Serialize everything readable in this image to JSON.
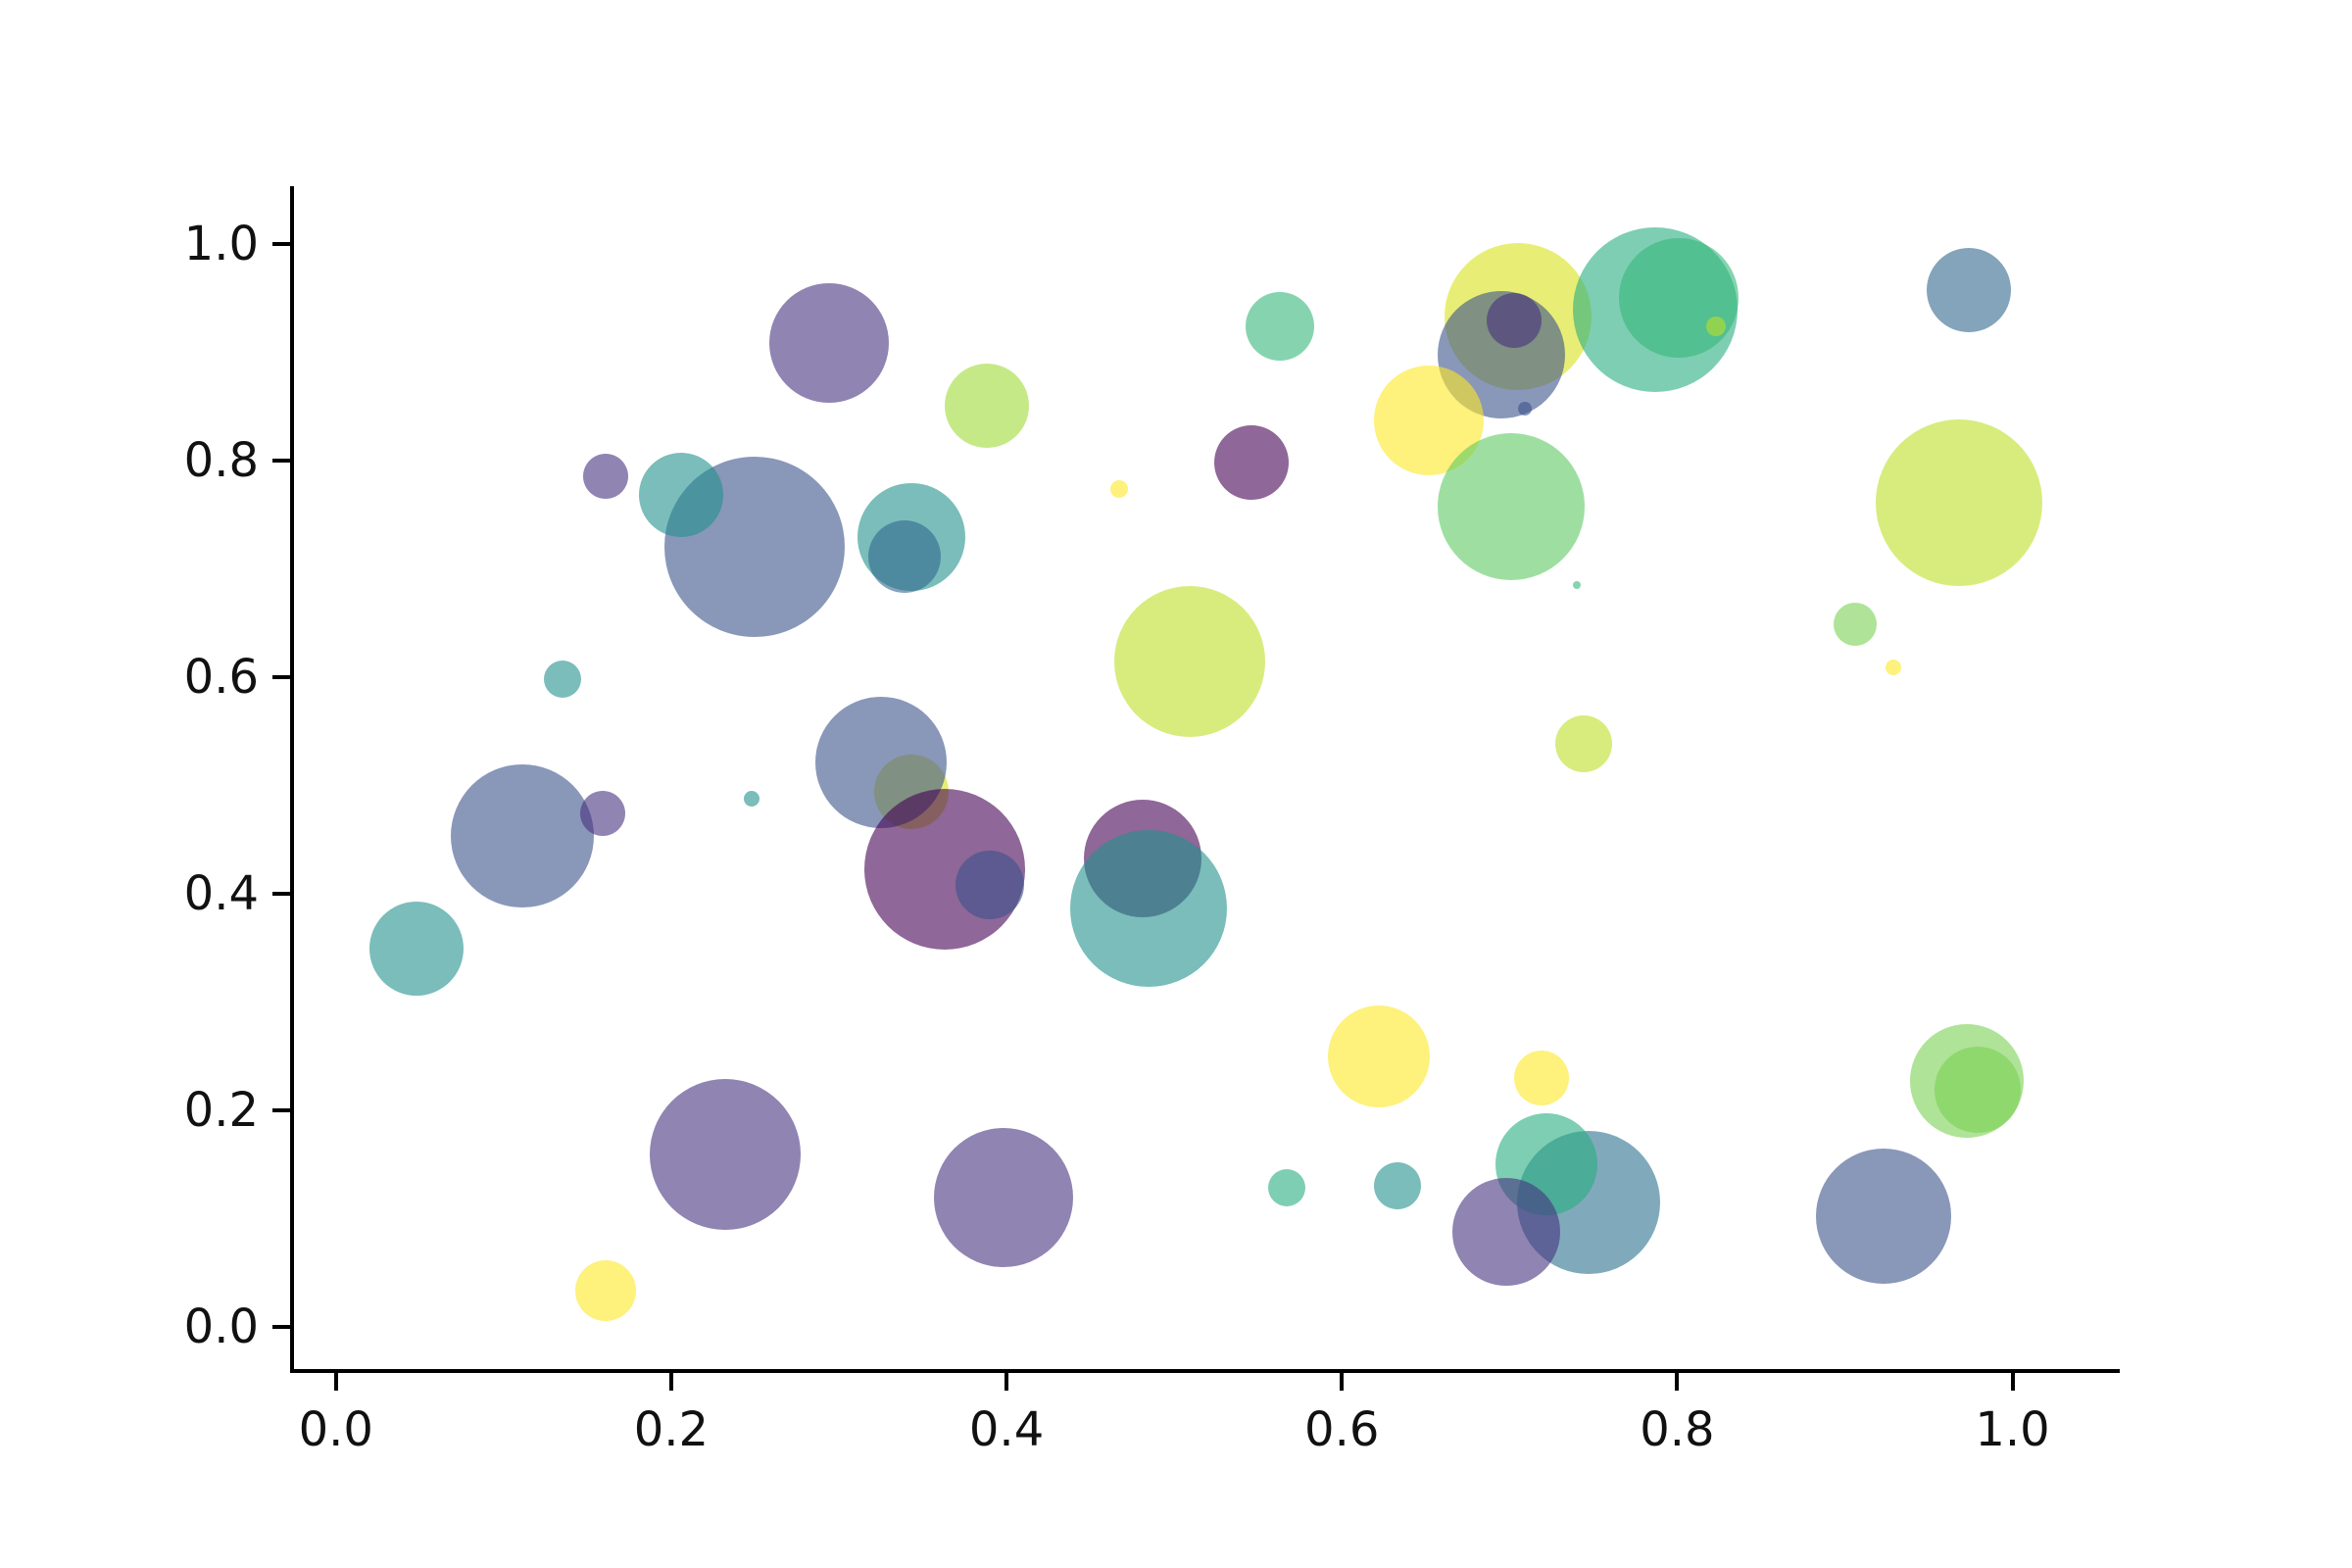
{
  "chart_data": {
    "type": "scatter",
    "title": "",
    "xlabel": "",
    "ylabel": "",
    "grid": false,
    "legend": null,
    "colormap": "viridis",
    "marker_alpha": 0.6,
    "xlim": [
      -0.025,
      1.064
    ],
    "ylim": [
      -0.039,
      1.053
    ],
    "x_tick_values": [
      0.0,
      0.2,
      0.4,
      0.6,
      0.8,
      1.0
    ],
    "x_tick_labels": [
      "0.0",
      "0.2",
      "0.4",
      "0.6",
      "0.8",
      "1.0"
    ],
    "y_tick_values": [
      0.0,
      0.2,
      0.4,
      0.6,
      0.8,
      1.0
    ],
    "y_tick_labels": [
      "0.0",
      "0.2",
      "0.4",
      "0.6",
      "0.8",
      "1.0"
    ],
    "points": [
      {
        "x": 0.705,
        "y": 0.933,
        "r": 75,
        "color": "#d8e219"
      },
      {
        "x": 0.695,
        "y": 0.897,
        "r": 65,
        "color": "#3b528b"
      },
      {
        "x": 0.703,
        "y": 0.929,
        "r": 28,
        "color": "#46327e"
      },
      {
        "x": 0.709,
        "y": 0.848,
        "r": 7,
        "color": "#3b528b"
      },
      {
        "x": 0.787,
        "y": 0.939,
        "r": 84,
        "color": "#28ae80"
      },
      {
        "x": 0.801,
        "y": 0.95,
        "r": 61,
        "color": "#35b779"
      },
      {
        "x": 0.823,
        "y": 0.924,
        "r": 10,
        "color": "#bddf26"
      },
      {
        "x": 0.25,
        "y": 0.72,
        "r": 92,
        "color": "#3b528b"
      },
      {
        "x": 0.343,
        "y": 0.729,
        "r": 55,
        "color": "#21918c"
      },
      {
        "x": 0.339,
        "y": 0.711,
        "r": 37,
        "color": "#31688e"
      },
      {
        "x": 0.294,
        "y": 0.908,
        "r": 61,
        "color": "#46327e"
      },
      {
        "x": 0.161,
        "y": 0.785,
        "r": 23,
        "color": "#46327e"
      },
      {
        "x": 0.206,
        "y": 0.768,
        "r": 43,
        "color": "#21918c"
      },
      {
        "x": 0.388,
        "y": 0.85,
        "r": 43,
        "color": "#a0da39"
      },
      {
        "x": 0.563,
        "y": 0.924,
        "r": 35,
        "color": "#35b779"
      },
      {
        "x": 0.546,
        "y": 0.798,
        "r": 38,
        "color": "#440154"
      },
      {
        "x": 0.467,
        "y": 0.773,
        "r": 9,
        "color": "#fde725"
      },
      {
        "x": 0.652,
        "y": 0.837,
        "r": 56,
        "color": "#fde725"
      },
      {
        "x": 0.701,
        "y": 0.757,
        "r": 75,
        "color": "#5ec962"
      },
      {
        "x": 0.74,
        "y": 0.685,
        "r": 4,
        "color": "#35b779"
      },
      {
        "x": 0.974,
        "y": 0.957,
        "r": 43,
        "color": "#31688e"
      },
      {
        "x": 0.968,
        "y": 0.761,
        "r": 85,
        "color": "#bddf26"
      },
      {
        "x": 0.135,
        "y": 0.598,
        "r": 19,
        "color": "#21918c"
      },
      {
        "x": 0.343,
        "y": 0.494,
        "r": 38,
        "color": "#d8e219"
      },
      {
        "x": 0.111,
        "y": 0.453,
        "r": 73,
        "color": "#3b528b"
      },
      {
        "x": 0.159,
        "y": 0.474,
        "r": 23,
        "color": "#46327e"
      },
      {
        "x": 0.325,
        "y": 0.521,
        "r": 67,
        "color": "#3b528b"
      },
      {
        "x": 0.363,
        "y": 0.422,
        "r": 82,
        "color": "#440154"
      },
      {
        "x": 0.39,
        "y": 0.408,
        "r": 35,
        "color": "#3b528b"
      },
      {
        "x": 0.048,
        "y": 0.349,
        "r": 48,
        "color": "#21918c"
      },
      {
        "x": 0.248,
        "y": 0.488,
        "r": 8,
        "color": "#21918c"
      },
      {
        "x": 0.481,
        "y": 0.432,
        "r": 60,
        "color": "#440154"
      },
      {
        "x": 0.485,
        "y": 0.386,
        "r": 80,
        "color": "#21918c"
      },
      {
        "x": 0.509,
        "y": 0.614,
        "r": 77,
        "color": "#bddf26"
      },
      {
        "x": 0.744,
        "y": 0.538,
        "r": 29,
        "color": "#bddf26"
      },
      {
        "x": 0.906,
        "y": 0.649,
        "r": 22,
        "color": "#7ad151"
      },
      {
        "x": 0.929,
        "y": 0.609,
        "r": 8,
        "color": "#fde725"
      },
      {
        "x": 0.232,
        "y": 0.159,
        "r": 77,
        "color": "#46327e"
      },
      {
        "x": 0.161,
        "y": 0.033,
        "r": 31,
        "color": "#fde725"
      },
      {
        "x": 0.398,
        "y": 0.119,
        "r": 71,
        "color": "#46327e"
      },
      {
        "x": 0.622,
        "y": 0.25,
        "r": 52,
        "color": "#fde725"
      },
      {
        "x": 0.719,
        "y": 0.23,
        "r": 28,
        "color": "#fde725"
      },
      {
        "x": 0.567,
        "y": 0.128,
        "r": 19,
        "color": "#28ae80"
      },
      {
        "x": 0.633,
        "y": 0.13,
        "r": 24,
        "color": "#21918c"
      },
      {
        "x": 0.747,
        "y": 0.115,
        "r": 73,
        "color": "#2c728e"
      },
      {
        "x": 0.722,
        "y": 0.15,
        "r": 52,
        "color": "#28ae80"
      },
      {
        "x": 0.698,
        "y": 0.088,
        "r": 55,
        "color": "#46327e"
      },
      {
        "x": 0.973,
        "y": 0.227,
        "r": 58,
        "color": "#7ad151"
      },
      {
        "x": 0.979,
        "y": 0.219,
        "r": 44,
        "color": "#7ad151"
      },
      {
        "x": 0.923,
        "y": 0.102,
        "r": 69,
        "color": "#3b528b"
      }
    ]
  }
}
